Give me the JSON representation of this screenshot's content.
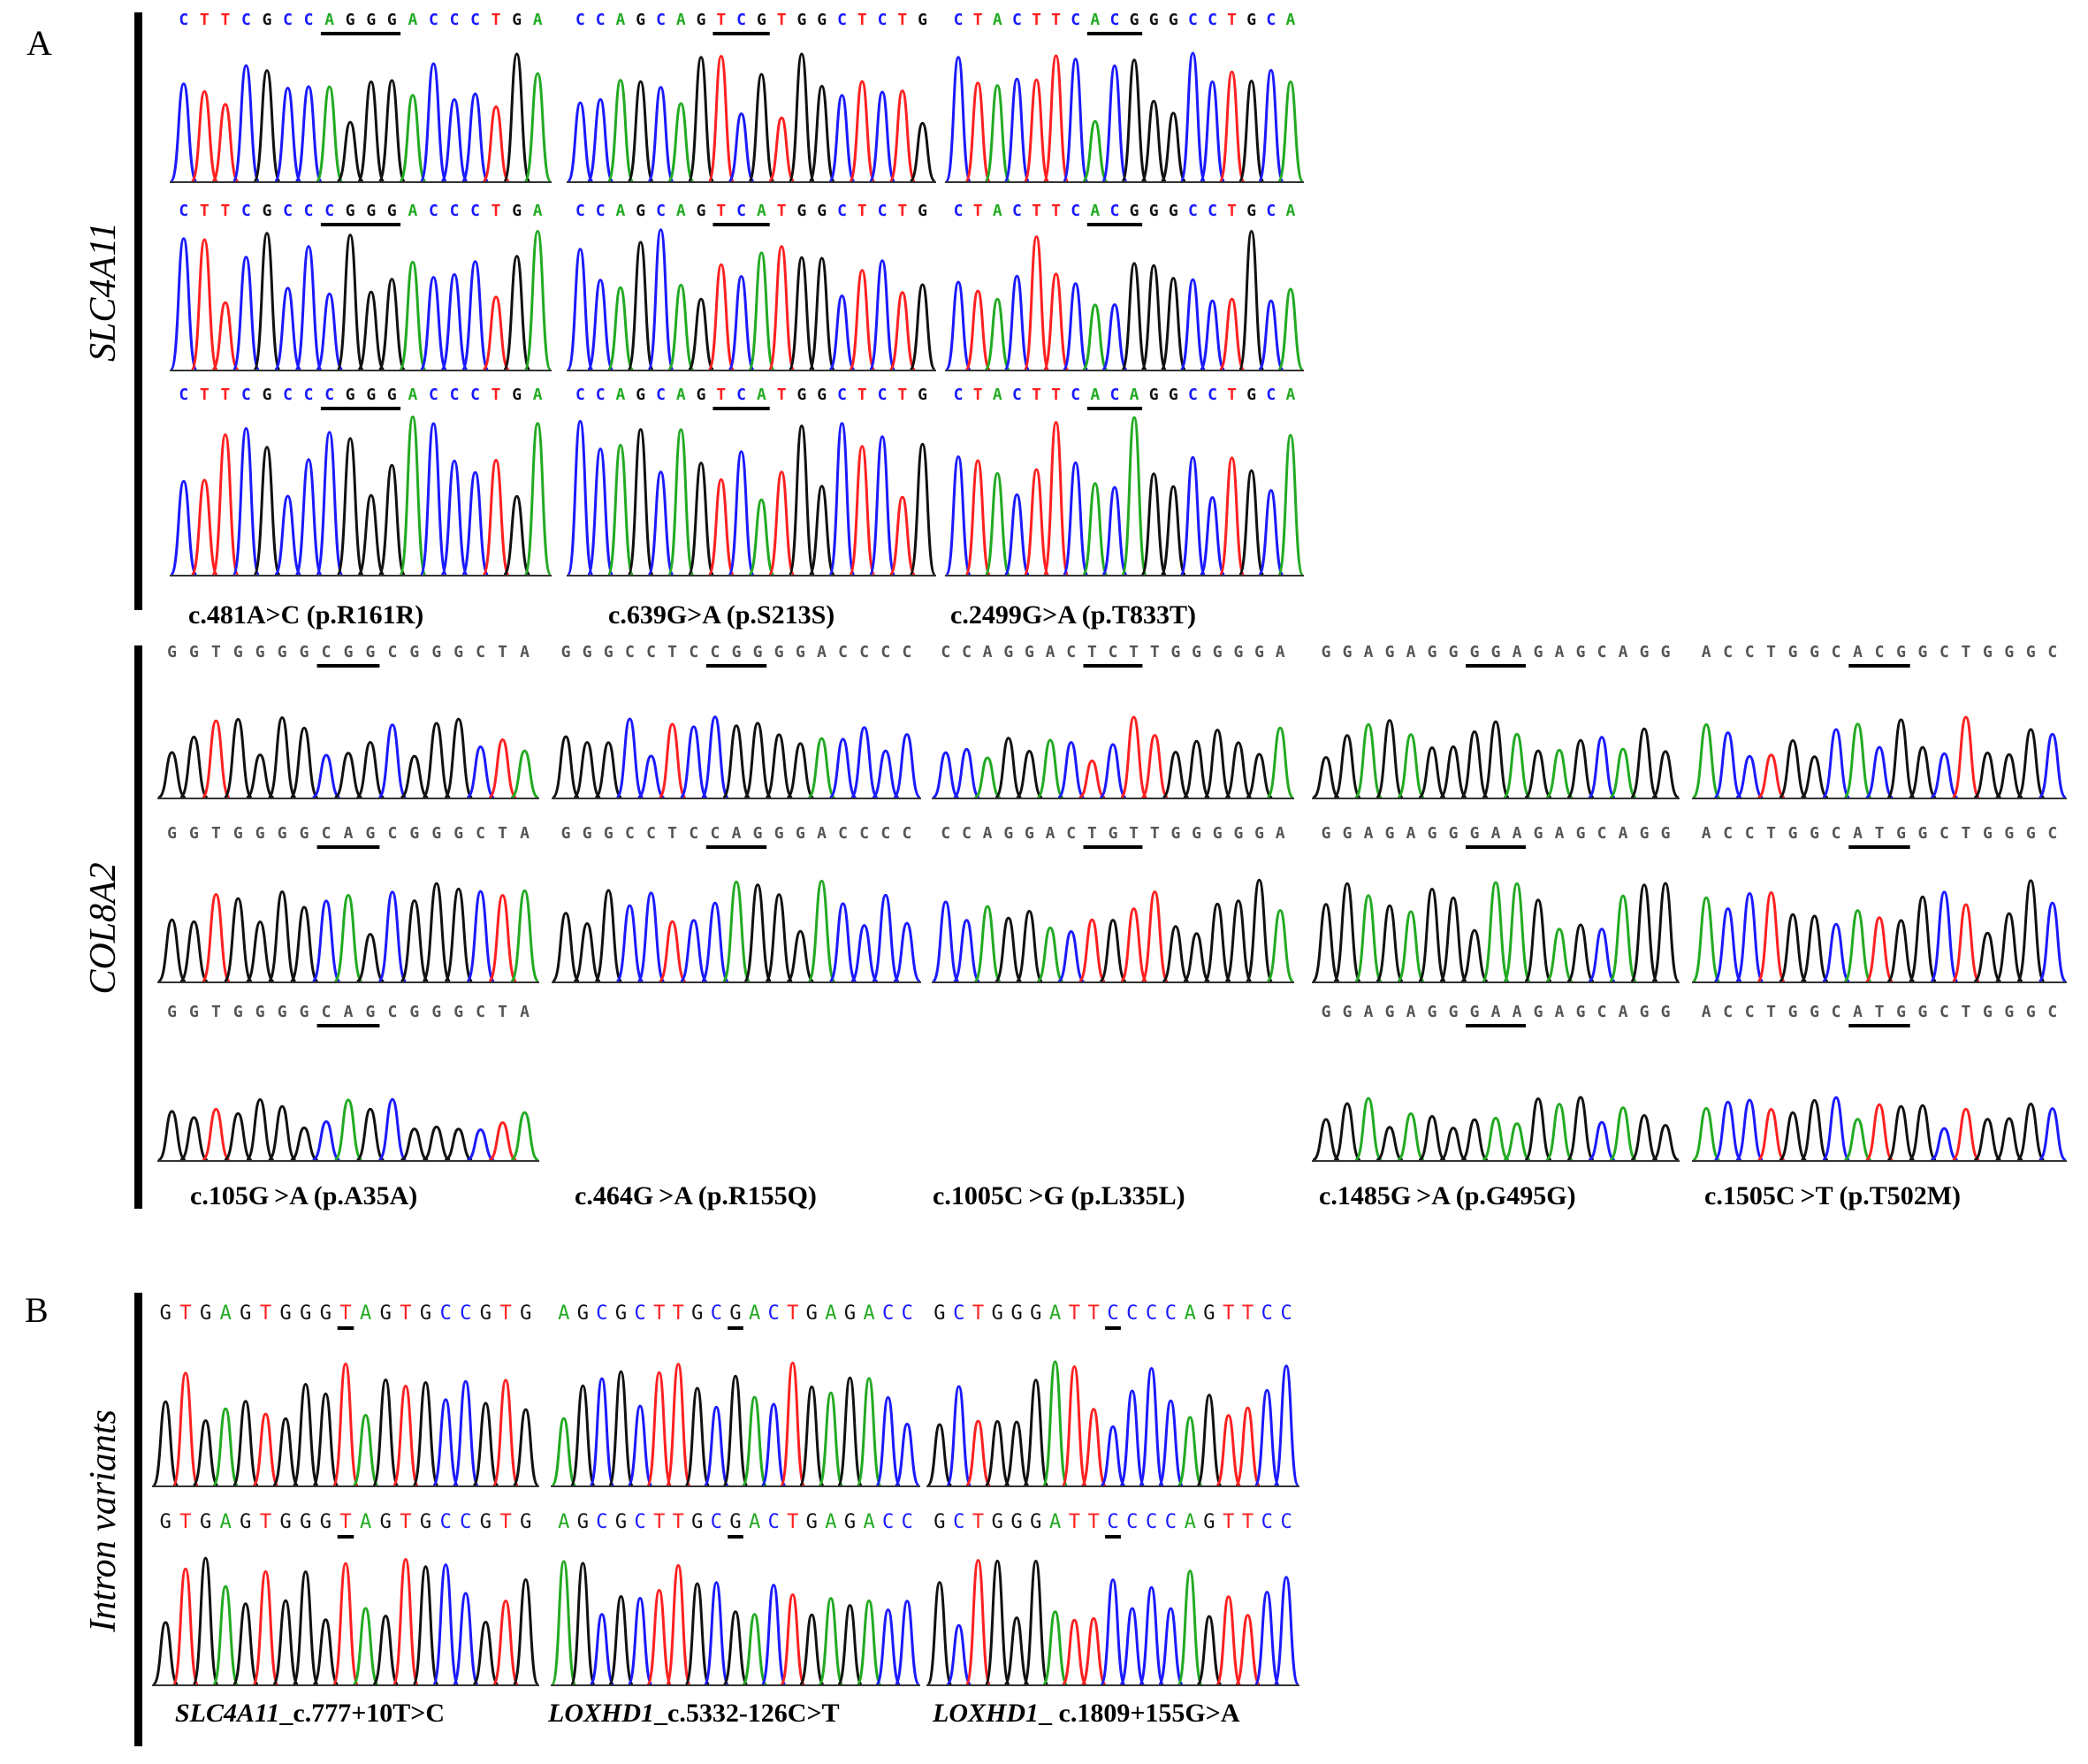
{
  "panels": {
    "a": "A",
    "b": "B"
  },
  "gene_labels": {
    "slc": "SLC4A11",
    "col": "COL8A2",
    "intron": "Intron variants"
  },
  "colors": {
    "A": "#22aa22",
    "C": "#1a1aff",
    "G": "#111111",
    "T": "#ff2020"
  },
  "slc4a11": {
    "columns": [
      {
        "caption": "c.481A>C (p.R161R)",
        "seqs": [
          "CTTCGCCAGGGACCCTGA",
          "CTTCGCCCGGGACCCTGA",
          "CTTCGCCCGGGACCCTGA"
        ]
      },
      {
        "caption": "c.639G>A (p.S213S)",
        "seqs": [
          "CCAGCAGTCGTGGCTCTG",
          "CCAGCAGTCATGGCTCTG",
          "CCAGCAGTCATGGCTCTG"
        ]
      },
      {
        "caption": "c.2499G>A (p.T833T)",
        "seqs": [
          "CTACTTCACGGGCCTGCA",
          "CTACTTCACGGGCCTGCA",
          "CTACTTCACAGGCCTGCA"
        ]
      }
    ]
  },
  "col8a2": {
    "columns": [
      {
        "caption": "c.105G >A (p.A35A)",
        "seqs": [
          "GGTGGGGCGGCGGGCTA",
          "GGTGGGGCAGCGGGCTA",
          "GGTGGGGCAGCGGGCTA"
        ]
      },
      {
        "caption": "c.464G >A (p.R155Q)",
        "seqs": [
          "GGGCCTCCGGGGACCCC",
          "GGGCCTCCAGGGACCCC"
        ]
      },
      {
        "caption": "c.1005C >G (p.L335L)",
        "seqs": [
          "CCAGGACTCTTGGGGGA",
          "CCAGGACTGTTGGGGGA"
        ]
      },
      {
        "caption": "c.1485G >A (p.G495G)",
        "seqs": [
          "GGAGAGGGGAGAGCAGG",
          "GGAGAGGGAAGAGCAGG",
          "GGAGAGGGAAGAGCAGG"
        ]
      },
      {
        "caption": "c.1505C >T (p.T502M)",
        "seqs": [
          "ACCTGGCACGGCTGGGC",
          "ACCTGGCATGGCTGGGC",
          "ACCTGGCATGGCTGGGC"
        ]
      }
    ]
  },
  "introns": {
    "columns": [
      {
        "gene": "SLC4A11",
        "variant": "_c.777+10T>C",
        "seqs": [
          "GTGAGTGGGTAGTGCCGTG",
          "GTGAGTGGGTAGTGCCGTG"
        ]
      },
      {
        "gene": "LOXHD1",
        "variant": "_c.5332-126C>T",
        "seqs": [
          "AGCGCTTGCGACTGAGACC",
          "AGCGCTTGCGACTGAGACC"
        ]
      },
      {
        "gene": "LOXHD1",
        "variant": "_ c.1809+155G>A",
        "seqs": [
          "GCTGGGATTCCCCAGTTCC",
          "GCTGGGATTCCCCAGTTCC"
        ]
      }
    ]
  }
}
